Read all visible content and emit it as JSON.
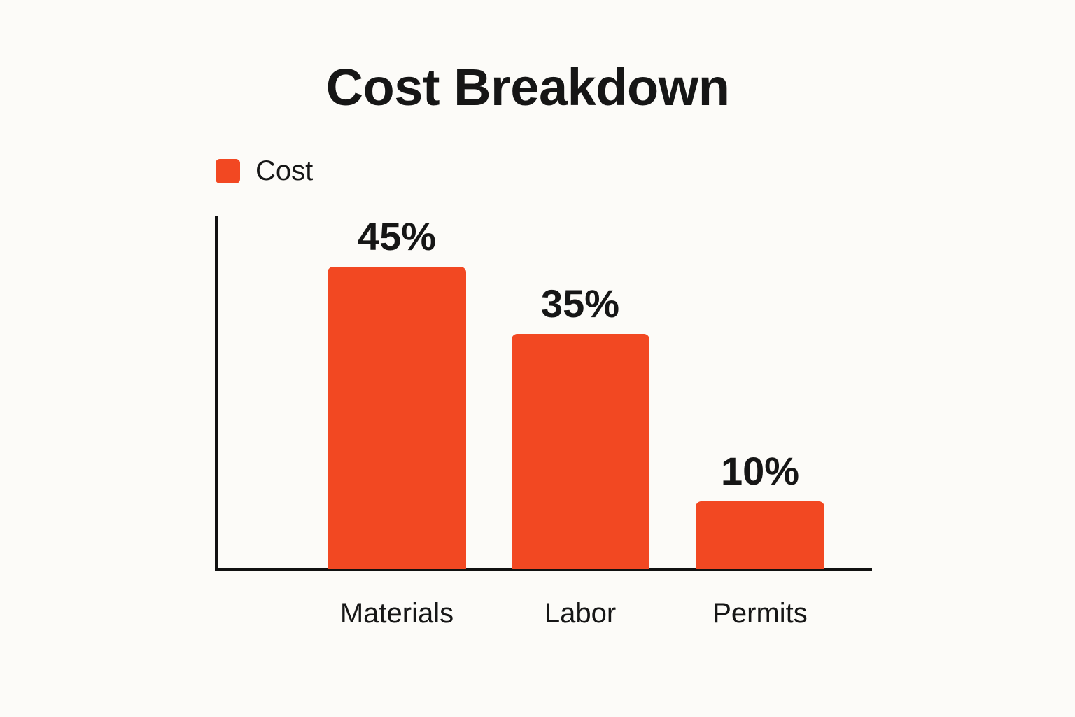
{
  "chart_data": {
    "type": "bar",
    "title": "Cost Breakdown",
    "xlabel": "",
    "ylabel": "",
    "legend": [
      "Cost"
    ],
    "legend_position": "top-left",
    "categories": [
      "Materials",
      "Labor",
      "Permits"
    ],
    "series": [
      {
        "name": "Cost",
        "values": [
          45,
          35,
          10
        ],
        "color": "#F24822"
      }
    ],
    "value_labels": [
      "45%",
      "35%",
      "10%"
    ],
    "ylim": [
      0,
      60
    ],
    "grid": false,
    "y_ticks_visible": false
  },
  "title": "Cost Breakdown",
  "legend": {
    "label": "Cost",
    "color": "#F24822"
  },
  "bars": [
    {
      "category": "Materials",
      "value_label": "45%"
    },
    {
      "category": "Labor",
      "value_label": "35%"
    },
    {
      "category": "Permits",
      "value_label": "10%"
    }
  ]
}
